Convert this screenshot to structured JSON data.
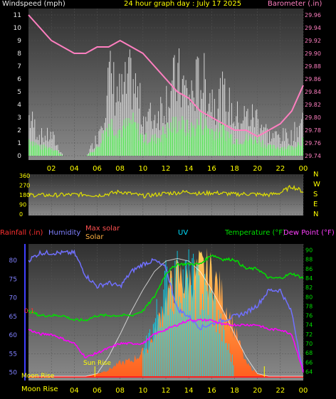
{
  "header": {
    "left_label": "Windspeed (mph)",
    "title": "24 hour graph day : July 17 2025",
    "right_label": "Barometer (.in)"
  },
  "colors": {
    "wind": "#e0e0e0",
    "gust_fill": "#00ff00",
    "barometer": "#ff7fc0",
    "direction": "#e0e000",
    "humidity": "#7070ff",
    "temperature": "#00e000",
    "dewpoint": "#ff00ff",
    "uv": "#00e0ff",
    "solar": "#ffb040",
    "max_solar": "#ffffff",
    "rain": "#ff0000",
    "labels_yellow": "#ffff00"
  },
  "time_ticks": [
    "02",
    "04",
    "06",
    "08",
    "10",
    "12",
    "14",
    "16",
    "18",
    "20",
    "22",
    "00"
  ],
  "wind_axis": [
    "0",
    "1",
    "2",
    "3",
    "4",
    "5",
    "6",
    "7",
    "8",
    "9",
    "10",
    "11"
  ],
  "baro_axis": [
    "29.74",
    "29.76",
    "29.78",
    "29.80",
    "29.82",
    "29.84",
    "29.86",
    "29.88",
    "29.90",
    "29.92",
    "29.94",
    "29.96"
  ],
  "dir_axis": [
    "360",
    "270",
    "180",
    "90",
    "0"
  ],
  "dir_letters": [
    "N",
    "W",
    "S",
    "E",
    "N"
  ],
  "bottom_legend": {
    "rainfall": "Rainfall (.in)",
    "humidity": "Humidity",
    "max_solar": "Max solar",
    "solar": "Solar",
    "uv": "UV",
    "temperature": "Temperature (°F)",
    "dewpoint": "Dew Point (°F)"
  },
  "hum_axis": [
    "50",
    "55",
    "60",
    "65",
    "70",
    "75",
    "80"
  ],
  "temp_axis": [
    "64",
    "66",
    "68",
    "70",
    "72",
    "74",
    "76",
    "78",
    "80",
    "82",
    "84",
    "86",
    "88",
    "90"
  ],
  "rain_tick": "0.1",
  "annotations": {
    "moon_rise_graph": "Moon Rise",
    "sun_rise": "Sun Rise",
    "moon_rise_axis": "Moon Rise"
  },
  "chart_data": [
    {
      "type": "bar",
      "title": "24 hour graph day : July 17 2025",
      "ylabel": "Windspeed (mph)",
      "y2label": "Barometer (.in)",
      "ylim": [
        0,
        11.5
      ],
      "y2lim": [
        29.74,
        29.97
      ],
      "x_ticks": [
        "02",
        "04",
        "06",
        "08",
        "10",
        "12",
        "14",
        "16",
        "18",
        "20",
        "22",
        "00"
      ],
      "series": [
        {
          "name": "Windspeed (mph)",
          "x": [
            0,
            1,
            2,
            3,
            4,
            5,
            6,
            7,
            8,
            9,
            10,
            11,
            12,
            13,
            14,
            15,
            16,
            17,
            18,
            19,
            20,
            21,
            22,
            23,
            24
          ],
          "values": [
            2,
            1,
            1,
            0,
            0,
            0,
            1,
            4,
            3,
            4,
            2,
            2,
            3,
            4,
            3,
            4,
            3,
            3,
            2,
            2,
            2,
            1,
            1,
            1,
            2
          ]
        },
        {
          "name": "Barometer (.in)",
          "x": [
            0,
            1,
            2,
            3,
            4,
            5,
            6,
            7,
            8,
            9,
            10,
            11,
            12,
            13,
            14,
            15,
            16,
            17,
            18,
            19,
            20,
            21,
            22,
            23,
            24
          ],
          "values": [
            29.96,
            29.94,
            29.92,
            29.91,
            29.9,
            29.9,
            29.91,
            29.91,
            29.92,
            29.91,
            29.9,
            29.88,
            29.86,
            29.84,
            29.83,
            29.81,
            29.8,
            29.79,
            29.78,
            29.78,
            29.77,
            29.78,
            29.79,
            29.81,
            29.85
          ]
        }
      ]
    },
    {
      "type": "line",
      "ylabel": "Wind direction",
      "ylim": [
        0,
        360
      ],
      "series": [
        {
          "x": [
            0,
            1,
            2,
            3,
            4,
            5,
            6,
            7,
            8,
            9,
            10,
            11,
            12,
            13,
            14,
            15,
            16,
            17,
            18,
            19,
            20,
            21,
            22,
            23,
            24
          ],
          "values": [
            180,
            178,
            176,
            180,
            182,
            185,
            175,
            190,
            210,
            190,
            170,
            180,
            195,
            200,
            210,
            190,
            200,
            195,
            185,
            190,
            185,
            180,
            200,
            260,
            210
          ]
        }
      ]
    },
    {
      "type": "line",
      "ylabel": "Humidity",
      "y2label": "Temperature (°F)",
      "ylim": [
        49,
        84
      ],
      "y2lim": [
        63,
        91
      ],
      "x_ticks": [
        "02",
        "04",
        "06",
        "08",
        "10",
        "12",
        "14",
        "16",
        "18",
        "20",
        "22",
        "00"
      ],
      "series": [
        {
          "name": "Humidity",
          "x": [
            0,
            1,
            2,
            3,
            4,
            5,
            6,
            7,
            8,
            9,
            10,
            11,
            12,
            13,
            14,
            15,
            16,
            17,
            18,
            19,
            20,
            21,
            22,
            23,
            24
          ],
          "values": [
            80,
            82,
            82,
            82,
            82,
            76,
            73,
            74,
            73,
            77,
            79,
            80,
            78,
            67,
            65,
            62,
            63,
            64,
            65,
            66,
            68,
            72,
            72,
            66,
            50
          ]
        },
        {
          "name": "Temperature (°F)",
          "x": [
            0,
            1,
            2,
            3,
            4,
            5,
            6,
            7,
            8,
            9,
            10,
            11,
            12,
            13,
            14,
            15,
            16,
            17,
            18,
            19,
            20,
            21,
            22,
            23,
            24
          ],
          "values": [
            77,
            76,
            76,
            76,
            75,
            75,
            76,
            76,
            76,
            76,
            77,
            80,
            85,
            87,
            87,
            87,
            89,
            88,
            88,
            86,
            86,
            84,
            84,
            85,
            84
          ]
        },
        {
          "name": "Dew Point (°F)",
          "x": [
            0,
            1,
            2,
            3,
            4,
            5,
            6,
            7,
            8,
            9,
            10,
            11,
            12,
            13,
            14,
            15,
            16,
            17,
            18,
            19,
            20,
            21,
            22,
            23,
            24
          ],
          "values": [
            73,
            72,
            72,
            71,
            70,
            67,
            68,
            69,
            70,
            70,
            70,
            72,
            73,
            74,
            75,
            75,
            75,
            74,
            74,
            74,
            74,
            73,
            73,
            72,
            64
          ]
        },
        {
          "name": "Solar",
          "x": [
            0,
            1,
            2,
            3,
            4,
            5,
            6,
            7,
            8,
            9,
            10,
            11,
            12,
            13,
            14,
            15,
            16,
            17,
            18,
            19,
            20,
            21,
            22,
            23,
            24
          ],
          "values": [
            0,
            0,
            0,
            0,
            0,
            0,
            0.02,
            0.05,
            0.1,
            0.12,
            0.18,
            0.3,
            0.6,
            0.75,
            0.72,
            0.8,
            0.78,
            0.6,
            0.35,
            0.1,
            0.02,
            0,
            0,
            0,
            0
          ]
        },
        {
          "name": "Max solar",
          "x": [
            0,
            1,
            2,
            3,
            4,
            5,
            6,
            7,
            8,
            9,
            10,
            11,
            12,
            13,
            14,
            15,
            16,
            17,
            18,
            19,
            20,
            21,
            22,
            23,
            24
          ],
          "values": [
            0,
            0,
            0,
            0,
            0,
            0,
            0.02,
            0.15,
            0.32,
            0.5,
            0.66,
            0.8,
            0.88,
            0.9,
            0.88,
            0.8,
            0.66,
            0.5,
            0.32,
            0.15,
            0.02,
            0,
            0,
            0,
            0
          ]
        },
        {
          "name": "UV",
          "x": [
            10,
            11,
            12,
            13,
            14,
            15,
            16,
            17,
            18
          ],
          "values": [
            0.2,
            0.5,
            0.85,
            0.9,
            0.9,
            0.8,
            0.7,
            0.4,
            0.1
          ]
        }
      ]
    }
  ]
}
